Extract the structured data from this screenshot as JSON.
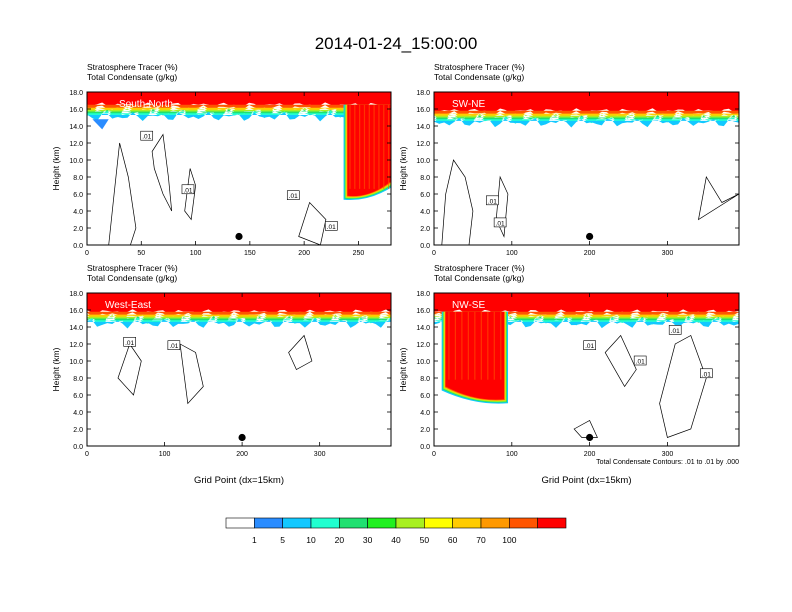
{
  "title": "2014-01-24_15:00:00",
  "colors": {
    "colorbar": [
      "#ffffff",
      "#2a8cff",
      "#12c8ff",
      "#20ffd0",
      "#20e070",
      "#20f020",
      "#a8f020",
      "#ffff00",
      "#ffcc00",
      "#ff9900",
      "#ff5500",
      "#ff0000"
    ]
  },
  "colorbar_labels": [
    "1",
    "5",
    "10",
    "20",
    "30",
    "40",
    "50",
    "60",
    "70",
    "100"
  ],
  "contour_note": "Total Condensate Contours: .01 to .01 by .000",
  "chart_data": [
    {
      "type": "heatmap",
      "panel": "South-North",
      "title_line1": "Stratosphere Tracer   (%)",
      "title_line2": "Total Condensate   (g/kg)",
      "ylabel": "Height (km)",
      "xlabel": "",
      "xlim": [
        0,
        280
      ],
      "xticks": [
        "0",
        "50",
        "100",
        "150",
        "200",
        "250"
      ],
      "ylim": [
        0,
        18
      ],
      "yticks": [
        "0.0",
        "2.0",
        "4.0",
        "6.0",
        "8.0",
        "10.0",
        "12.0",
        "14.0",
        "16.0",
        "18.0"
      ],
      "marker_x": 140,
      "marker_y": 1.0,
      "contour_labels": [
        ".01",
        ".01",
        ".01",
        ".01"
      ],
      "tracer_top_km": 16.5,
      "intrusion": {
        "x0": 240,
        "x1": 280,
        "bottom_km_left": 5.8,
        "bottom_km_right": 7.5
      }
    },
    {
      "type": "heatmap",
      "panel": "SW-NE",
      "title_line1": "Stratosphere Tracer   (%)",
      "title_line2": "Total Condensate   (g/kg)",
      "ylabel": "Height (km)",
      "xlabel": "",
      "xlim": [
        0,
        392
      ],
      "xticks": [
        "0",
        "100",
        "200",
        "300"
      ],
      "ylim": [
        0,
        18
      ],
      "yticks": [
        "0.0",
        "2.0",
        "4.0",
        "6.0",
        "8.0",
        "10.0",
        "12.0",
        "14.0",
        "16.0",
        "18.0"
      ],
      "marker_x": 200,
      "marker_y": 1.0,
      "contour_labels": [
        ".01",
        ".01"
      ],
      "tracer_top_km": 15.8
    },
    {
      "type": "heatmap",
      "panel": "West-East",
      "title_line1": "Stratosphere Tracer   (%)",
      "title_line2": "Total Condensate   (g/kg)",
      "ylabel": "Height (km)",
      "xlabel": "Grid Point (dx=15km)",
      "xlim": [
        0,
        392
      ],
      "xticks": [
        "0",
        "100",
        "200",
        "300"
      ],
      "ylim": [
        0,
        18
      ],
      "yticks": [
        "0.0",
        "2.0",
        "4.0",
        "6.0",
        "8.0",
        "10.0",
        "12.0",
        "14.0",
        "16.0",
        "18.0"
      ],
      "marker_x": 200,
      "marker_y": 1.0,
      "contour_labels": [
        ".01",
        ".01"
      ],
      "tracer_top_km": 15.8
    },
    {
      "type": "heatmap",
      "panel": "NW-SE",
      "title_line1": "Stratosphere Tracer   (%)",
      "title_line2": "Total Condensate   (g/kg)",
      "ylabel": "Height (km)",
      "xlabel": "Grid Point (dx=15km)",
      "xlim": [
        0,
        392
      ],
      "xticks": [
        "0",
        "100",
        "200",
        "300"
      ],
      "ylim": [
        0,
        18
      ],
      "yticks": [
        "0.0",
        "2.0",
        "4.0",
        "6.0",
        "8.0",
        "10.0",
        "12.0",
        "14.0",
        "16.0",
        "18.0"
      ],
      "marker_x": 200,
      "marker_y": 1.0,
      "contour_labels": [
        ".01",
        ".01",
        ".01",
        ".01"
      ],
      "tracer_top_km": 15.8,
      "intrusion": {
        "x0": 15,
        "x1": 90,
        "bottom_km_left": 7.0,
        "bottom_km_right": 5.5
      }
    }
  ]
}
